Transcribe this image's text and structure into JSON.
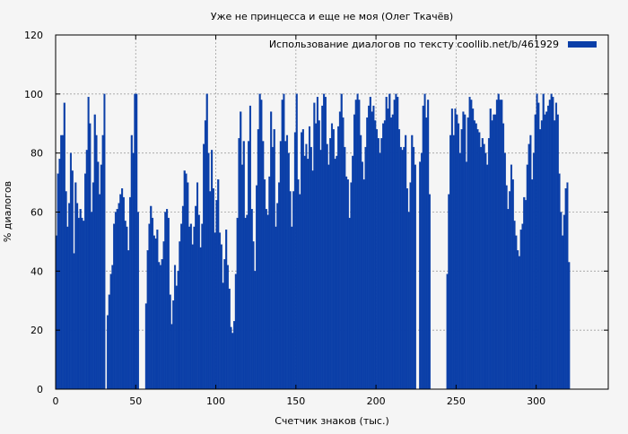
{
  "chart_data": {
    "type": "bar",
    "title": "Уже не принцесса и еще не моя (Олег Ткачёв)",
    "xlabel": "Счетчик знаков (тыс.)",
    "ylabel": "% диалогов",
    "xlim": [
      0,
      345
    ],
    "ylim": [
      0,
      120
    ],
    "x_ticks": [
      0,
      50,
      100,
      150,
      200,
      250,
      300
    ],
    "y_ticks": [
      0,
      20,
      40,
      60,
      80,
      100,
      120
    ],
    "grid": true,
    "legend_position": "top-right",
    "series": [
      {
        "name": "Использование диалогов по тексту  coollib.net/b/461929",
        "color": "#0b3fa8",
        "bin_width": 1,
        "values": [
          52,
          73,
          78,
          86,
          86,
          97,
          67,
          55,
          63,
          80,
          74,
          46,
          70,
          63,
          58,
          61,
          58,
          57,
          73,
          81,
          99,
          90,
          60,
          70,
          93,
          86,
          77,
          66,
          76,
          86,
          100,
          0,
          25,
          32,
          39,
          42,
          56,
          60,
          61,
          63,
          66,
          68,
          65,
          57,
          55,
          47,
          65,
          86,
          80,
          100,
          100,
          60,
          0,
          0,
          0,
          0,
          29,
          47,
          56,
          62,
          58,
          52,
          51,
          54,
          43,
          42,
          44,
          50,
          60,
          61,
          58,
          32,
          22,
          30,
          42,
          35,
          40,
          50,
          56,
          62,
          74,
          73,
          70,
          55,
          56,
          49,
          55,
          62,
          70,
          59,
          48,
          56,
          83,
          91,
          100,
          80,
          67,
          81,
          68,
          53,
          64,
          71,
          53,
          49,
          36,
          44,
          54,
          42,
          34,
          21,
          19,
          23,
          39,
          58,
          85,
          94,
          76,
          84,
          58,
          59,
          84,
          96,
          61,
          50,
          40,
          69,
          88,
          100,
          98,
          84,
          71,
          61,
          59,
          72,
          94,
          82,
          88,
          55,
          63,
          70,
          84,
          98,
          100,
          84,
          86,
          80,
          67,
          55,
          67,
          87,
          100,
          71,
          66,
          87,
          88,
          79,
          83,
          78,
          89,
          82,
          74,
          97,
          90,
          99,
          91,
          81,
          96,
          100,
          99,
          83,
          76,
          85,
          90,
          88,
          78,
          79,
          89,
          94,
          100,
          92,
          82,
          72,
          71,
          58,
          70,
          79,
          93,
          98,
          100,
          98,
          86,
          77,
          71,
          82,
          92,
          96,
          99,
          94,
          96,
          91,
          88,
          85,
          80,
          85,
          90,
          91,
          99,
          95,
          100,
          92,
          93,
          98,
          100,
          99,
          88,
          82,
          81,
          82,
          86,
          68,
          60,
          70,
          86,
          82,
          76,
          0,
          0,
          77,
          80,
          96,
          100,
          92,
          98,
          66,
          0,
          0,
          0,
          0,
          0,
          0,
          0,
          0,
          0,
          0,
          39,
          66,
          86,
          95,
          86,
          95,
          93,
          90,
          80,
          88,
          94,
          93,
          77,
          92,
          99,
          98,
          95,
          91,
          90,
          88,
          87,
          82,
          85,
          83,
          80,
          76,
          85,
          95,
          91,
          93,
          93,
          98,
          100,
          98,
          98,
          90,
          80,
          69,
          61,
          67,
          76,
          71,
          57,
          52,
          47,
          45,
          54,
          56,
          65,
          64,
          76,
          83,
          86,
          71,
          80,
          93,
          100,
          97,
          88,
          91,
          100,
          93,
          94,
          96,
          98,
          100,
          99,
          91,
          97,
          93,
          73,
          60,
          52,
          59,
          68,
          70,
          43
        ]
      }
    ]
  }
}
